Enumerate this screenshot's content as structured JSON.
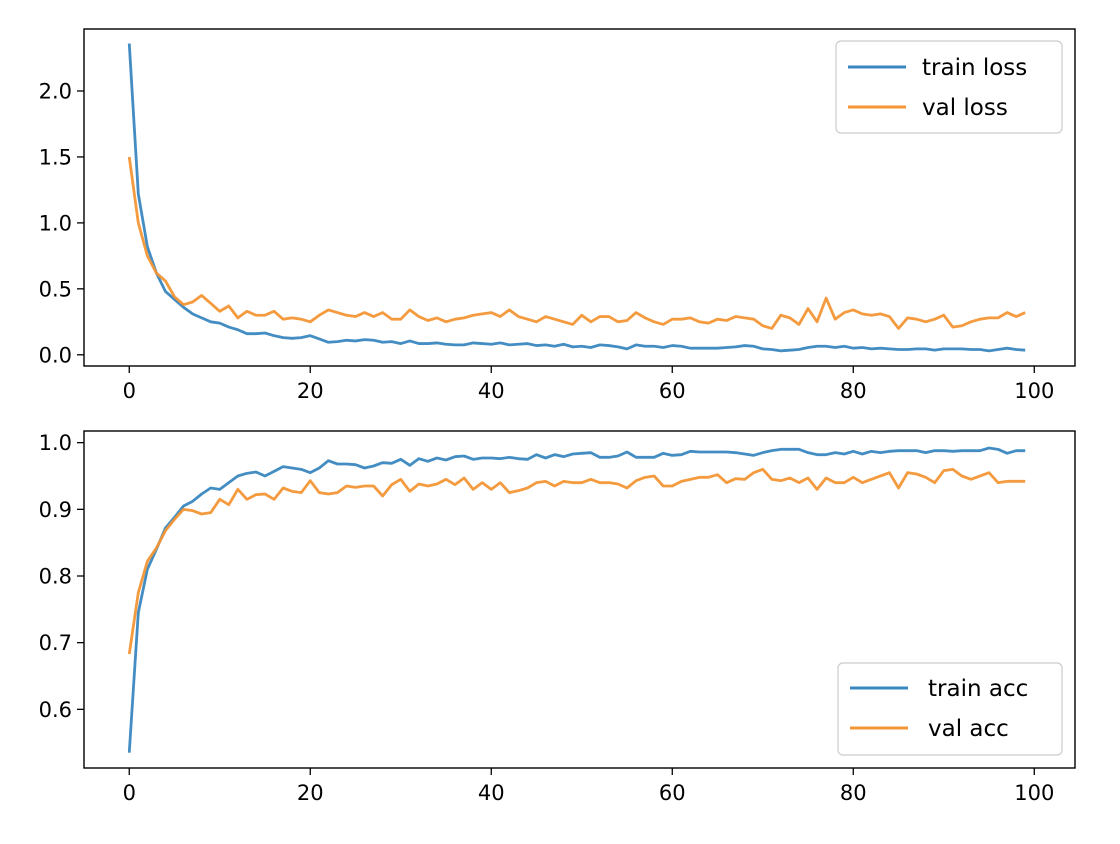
{
  "colors": {
    "series_1": "#3a87c0",
    "series_2": "#f39535",
    "axis": "#000000",
    "background": "#ffffff"
  },
  "chart_data": [
    {
      "type": "line",
      "title": "",
      "xlabel": "",
      "ylabel": "",
      "xlim": [
        -5,
        104.5
      ],
      "ylim": [
        -0.085,
        2.47
      ],
      "grid": false,
      "legend_position": "upper-right",
      "x_ticks": [
        0,
        20,
        40,
        60,
        80,
        100
      ],
      "x_tick_labels": [
        "0",
        "20",
        "40",
        "60",
        "80",
        "100"
      ],
      "y_ticks": [
        0.0,
        0.5,
        1.0,
        1.5,
        2.0
      ],
      "y_tick_labels": [
        "0.0",
        "0.5",
        "1.0",
        "1.5",
        "2.0"
      ],
      "series": [
        {
          "name": "train loss",
          "color": "#3a87c0",
          "values": [
            2.36,
            1.22,
            0.82,
            0.62,
            0.48,
            0.42,
            0.36,
            0.31,
            0.28,
            0.25,
            0.24,
            0.21,
            0.19,
            0.16,
            0.16,
            0.165,
            0.145,
            0.13,
            0.125,
            0.13,
            0.145,
            0.12,
            0.095,
            0.1,
            0.11,
            0.105,
            0.115,
            0.11,
            0.095,
            0.1,
            0.085,
            0.105,
            0.085,
            0.085,
            0.09,
            0.08,
            0.075,
            0.075,
            0.09,
            0.085,
            0.08,
            0.09,
            0.075,
            0.08,
            0.085,
            0.07,
            0.075,
            0.065,
            0.08,
            0.06,
            0.065,
            0.055,
            0.075,
            0.07,
            0.06,
            0.045,
            0.075,
            0.065,
            0.065,
            0.055,
            0.07,
            0.065,
            0.05,
            0.05,
            0.05,
            0.05,
            0.055,
            0.06,
            0.07,
            0.065,
            0.045,
            0.04,
            0.03,
            0.035,
            0.04,
            0.055,
            0.065,
            0.065,
            0.055,
            0.065,
            0.05,
            0.055,
            0.045,
            0.05,
            0.045,
            0.04,
            0.04,
            0.045,
            0.045,
            0.035,
            0.045,
            0.045,
            0.045,
            0.04,
            0.04,
            0.03,
            0.04,
            0.05,
            0.04,
            0.035
          ]
        },
        {
          "name": "val loss",
          "color": "#f39535",
          "values": [
            1.5,
            1.0,
            0.75,
            0.62,
            0.56,
            0.44,
            0.38,
            0.4,
            0.45,
            0.39,
            0.33,
            0.37,
            0.28,
            0.33,
            0.3,
            0.3,
            0.33,
            0.27,
            0.28,
            0.27,
            0.25,
            0.3,
            0.34,
            0.32,
            0.3,
            0.29,
            0.32,
            0.29,
            0.32,
            0.27,
            0.27,
            0.34,
            0.29,
            0.26,
            0.28,
            0.25,
            0.27,
            0.28,
            0.3,
            0.31,
            0.32,
            0.29,
            0.34,
            0.29,
            0.27,
            0.25,
            0.29,
            0.27,
            0.25,
            0.23,
            0.3,
            0.25,
            0.29,
            0.29,
            0.25,
            0.26,
            0.32,
            0.28,
            0.25,
            0.23,
            0.27,
            0.27,
            0.28,
            0.25,
            0.24,
            0.27,
            0.26,
            0.29,
            0.28,
            0.27,
            0.22,
            0.2,
            0.3,
            0.28,
            0.23,
            0.35,
            0.25,
            0.43,
            0.27,
            0.32,
            0.34,
            0.31,
            0.3,
            0.31,
            0.29,
            0.2,
            0.28,
            0.27,
            0.25,
            0.27,
            0.3,
            0.21,
            0.22,
            0.25,
            0.27,
            0.28,
            0.28,
            0.32,
            0.29,
            0.32
          ]
        }
      ]
    },
    {
      "type": "line",
      "title": "",
      "xlabel": "",
      "ylabel": "",
      "xlim": [
        -5,
        104.5
      ],
      "ylim": [
        0.512,
        1.0175
      ],
      "grid": false,
      "legend_position": "lower-right",
      "x_ticks": [
        0,
        20,
        40,
        60,
        80,
        100
      ],
      "x_tick_labels": [
        "0",
        "20",
        "40",
        "60",
        "80",
        "100"
      ],
      "y_ticks": [
        0.6,
        0.7,
        0.8,
        0.9,
        1.0
      ],
      "y_tick_labels": [
        "0.6",
        "0.7",
        "0.8",
        "0.9",
        "1.0"
      ],
      "series": [
        {
          "name": "train acc",
          "color": "#3a87c0",
          "values": [
            0.535,
            0.745,
            0.81,
            0.84,
            0.872,
            0.888,
            0.905,
            0.912,
            0.923,
            0.932,
            0.93,
            0.94,
            0.95,
            0.954,
            0.956,
            0.95,
            0.957,
            0.964,
            0.962,
            0.96,
            0.955,
            0.962,
            0.973,
            0.968,
            0.968,
            0.967,
            0.962,
            0.965,
            0.97,
            0.969,
            0.975,
            0.966,
            0.976,
            0.972,
            0.977,
            0.974,
            0.979,
            0.98,
            0.975,
            0.977,
            0.977,
            0.976,
            0.978,
            0.976,
            0.975,
            0.982,
            0.977,
            0.982,
            0.979,
            0.983,
            0.984,
            0.985,
            0.978,
            0.978,
            0.98,
            0.986,
            0.978,
            0.978,
            0.978,
            0.984,
            0.981,
            0.982,
            0.987,
            0.986,
            0.986,
            0.986,
            0.986,
            0.985,
            0.983,
            0.981,
            0.985,
            0.988,
            0.99,
            0.99,
            0.99,
            0.985,
            0.982,
            0.982,
            0.985,
            0.983,
            0.987,
            0.983,
            0.987,
            0.985,
            0.987,
            0.988,
            0.988,
            0.988,
            0.985,
            0.988,
            0.988,
            0.987,
            0.988,
            0.988,
            0.988,
            0.992,
            0.99,
            0.984,
            0.988,
            0.988
          ]
        },
        {
          "name": "val acc",
          "color": "#f39535",
          "values": [
            0.683,
            0.775,
            0.822,
            0.842,
            0.868,
            0.885,
            0.9,
            0.898,
            0.893,
            0.895,
            0.915,
            0.907,
            0.93,
            0.915,
            0.922,
            0.923,
            0.915,
            0.932,
            0.927,
            0.925,
            0.943,
            0.925,
            0.923,
            0.925,
            0.935,
            0.933,
            0.935,
            0.935,
            0.92,
            0.937,
            0.945,
            0.927,
            0.938,
            0.935,
            0.938,
            0.945,
            0.937,
            0.947,
            0.93,
            0.94,
            0.93,
            0.94,
            0.925,
            0.928,
            0.932,
            0.94,
            0.942,
            0.935,
            0.942,
            0.94,
            0.94,
            0.945,
            0.94,
            0.94,
            0.938,
            0.932,
            0.943,
            0.948,
            0.95,
            0.935,
            0.935,
            0.942,
            0.945,
            0.948,
            0.948,
            0.952,
            0.94,
            0.946,
            0.945,
            0.955,
            0.96,
            0.945,
            0.943,
            0.947,
            0.94,
            0.947,
            0.93,
            0.947,
            0.94,
            0.94,
            0.948,
            0.94,
            0.945,
            0.95,
            0.955,
            0.932,
            0.955,
            0.953,
            0.948,
            0.94,
            0.958,
            0.96,
            0.95,
            0.945,
            0.95,
            0.955,
            0.94,
            0.942,
            0.942,
            0.942
          ]
        }
      ]
    }
  ]
}
